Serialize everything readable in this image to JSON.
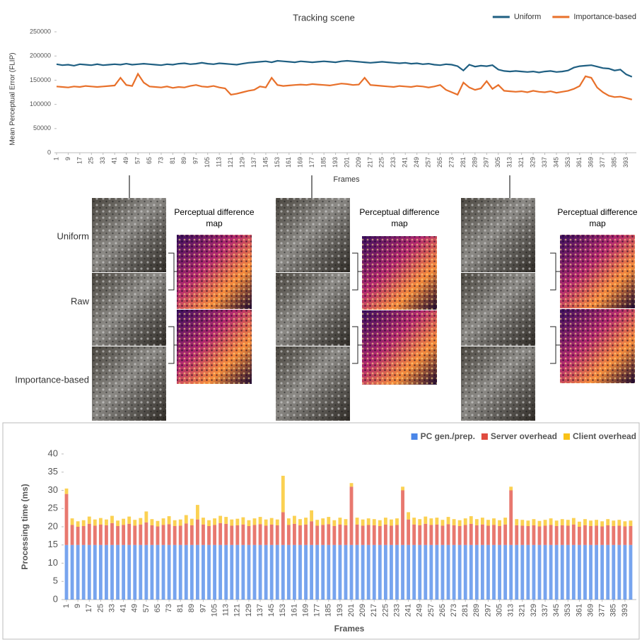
{
  "chart_data": [
    {
      "type": "line",
      "title": "Tracking scene",
      "x_label": "Frames",
      "y_label": "Mean Perceptual Error (FLIP)",
      "legend": "top-right",
      "x": [
        1,
        5,
        9,
        13,
        17,
        21,
        25,
        29,
        33,
        37,
        41,
        45,
        49,
        53,
        57,
        61,
        65,
        69,
        73,
        77,
        81,
        85,
        89,
        93,
        97,
        101,
        105,
        109,
        113,
        117,
        121,
        125,
        129,
        133,
        137,
        141,
        145,
        149,
        153,
        157,
        161,
        165,
        169,
        173,
        177,
        181,
        185,
        189,
        193,
        197,
        201,
        205,
        209,
        213,
        217,
        221,
        225,
        229,
        233,
        237,
        241,
        245,
        249,
        253,
        257,
        261,
        265,
        269,
        273,
        277,
        281,
        285,
        289,
        293,
        297,
        301,
        305,
        309,
        313,
        317,
        321,
        325,
        329,
        333,
        337,
        341,
        345,
        349,
        353,
        357,
        361,
        365,
        369,
        373,
        377,
        381,
        385,
        389,
        393,
        397
      ],
      "xlim": [
        1,
        400
      ],
      "xticks": [
        1,
        9,
        17,
        25,
        33,
        41,
        49,
        57,
        65,
        73,
        81,
        89,
        97,
        105,
        113,
        121,
        129,
        137,
        145,
        153,
        161,
        169,
        177,
        185,
        193,
        201,
        209,
        217,
        225,
        233,
        241,
        249,
        257,
        265,
        273,
        281,
        289,
        297,
        305,
        313,
        321,
        329,
        337,
        345,
        353,
        361,
        369,
        377,
        385,
        393
      ],
      "ylim": [
        0,
        250000
      ],
      "yticks": [
        0,
        50000,
        100000,
        150000,
        200000,
        250000
      ],
      "series": [
        {
          "name": "Uniform",
          "color": "#1f5f82",
          "values": [
            183000,
            181000,
            182000,
            180000,
            183000,
            182000,
            181000,
            183000,
            181000,
            182000,
            183000,
            182000,
            184000,
            182000,
            183000,
            184000,
            183000,
            182000,
            181000,
            183000,
            182000,
            184000,
            185000,
            183000,
            184000,
            186000,
            184000,
            183000,
            185000,
            184000,
            183000,
            182000,
            184000,
            186000,
            187000,
            188000,
            189000,
            187000,
            190000,
            189000,
            188000,
            187000,
            189000,
            188000,
            187000,
            188000,
            189000,
            188000,
            187000,
            189000,
            190000,
            189000,
            188000,
            187000,
            186000,
            187000,
            188000,
            187000,
            186000,
            185000,
            186000,
            184000,
            185000,
            183000,
            184000,
            182000,
            181000,
            183000,
            182000,
            179000,
            170000,
            182000,
            178000,
            180000,
            179000,
            181000,
            172000,
            169000,
            168000,
            169000,
            168000,
            167000,
            168000,
            166000,
            168000,
            169000,
            167000,
            168000,
            170000,
            176000,
            179000,
            180000,
            181000,
            178000,
            175000,
            174000,
            170000,
            172000,
            162000,
            157000
          ]
        },
        {
          "name": "Importance-based",
          "color": "#e8702a",
          "values": [
            137000,
            136000,
            135000,
            137000,
            136000,
            138000,
            137000,
            136000,
            137000,
            138000,
            139000,
            155000,
            140000,
            138000,
            163000,
            145000,
            137000,
            136000,
            135000,
            137000,
            134000,
            136000,
            135000,
            138000,
            140000,
            137000,
            136000,
            138000,
            135000,
            133000,
            120000,
            122000,
            125000,
            128000,
            130000,
            137000,
            135000,
            155000,
            140000,
            138000,
            139000,
            140000,
            141000,
            140000,
            142000,
            141000,
            140000,
            139000,
            141000,
            143000,
            142000,
            140000,
            141000,
            155000,
            140000,
            139000,
            138000,
            137000,
            136000,
            138000,
            137000,
            136000,
            138000,
            137000,
            135000,
            137000,
            140000,
            130000,
            125000,
            120000,
            145000,
            135000,
            130000,
            133000,
            148000,
            132000,
            140000,
            128000,
            127000,
            126000,
            127000,
            125000,
            128000,
            126000,
            125000,
            127000,
            124000,
            126000,
            128000,
            132000,
            138000,
            158000,
            155000,
            135000,
            125000,
            118000,
            115000,
            116000,
            113000,
            110000
          ]
        }
      ]
    },
    {
      "type": "stacked-bar",
      "x_label": "Frames",
      "y_label": "Processing time (ms)",
      "legend": "top-right",
      "x": [
        1,
        5,
        9,
        13,
        17,
        21,
        25,
        29,
        33,
        37,
        41,
        45,
        49,
        53,
        57,
        61,
        65,
        69,
        73,
        77,
        81,
        85,
        89,
        93,
        97,
        101,
        105,
        109,
        113,
        117,
        121,
        125,
        129,
        133,
        137,
        141,
        145,
        149,
        153,
        157,
        161,
        165,
        169,
        173,
        177,
        181,
        185,
        189,
        193,
        197,
        201,
        205,
        209,
        213,
        217,
        221,
        225,
        229,
        233,
        237,
        241,
        245,
        249,
        253,
        257,
        261,
        265,
        269,
        273,
        277,
        281,
        285,
        289,
        293,
        297,
        301,
        305,
        309,
        313,
        317,
        321,
        325,
        329,
        333,
        337,
        341,
        345,
        349,
        353,
        357,
        361,
        365,
        369,
        373,
        377,
        381,
        385,
        389,
        393,
        397
      ],
      "xlim": [
        -1,
        401
      ],
      "xticks": [
        1,
        9,
        17,
        25,
        33,
        41,
        49,
        57,
        65,
        73,
        81,
        89,
        97,
        105,
        113,
        121,
        129,
        137,
        145,
        153,
        161,
        169,
        177,
        185,
        193,
        201,
        209,
        217,
        225,
        233,
        241,
        249,
        257,
        265,
        273,
        281,
        289,
        297,
        305,
        313,
        321,
        329,
        337,
        345,
        353,
        361,
        369,
        377,
        385,
        393
      ],
      "ylim": [
        0,
        40
      ],
      "yticks": [
        0,
        5,
        10,
        15,
        20,
        25,
        30,
        35,
        40
      ],
      "series": [
        {
          "name": "PC gen./prep.",
          "color": "#4a86e8",
          "values": [
            15,
            15,
            15,
            15,
            15,
            15,
            15,
            15,
            15,
            15,
            15,
            15,
            15,
            15,
            15,
            15,
            15,
            15,
            15,
            15,
            15,
            15,
            15,
            15,
            15,
            15,
            15,
            15,
            15,
            15,
            15,
            15,
            15,
            15,
            15,
            15,
            15,
            15,
            15,
            15,
            15,
            15,
            15,
            15,
            15,
            15,
            15,
            15,
            15,
            15,
            15,
            15,
            15,
            15,
            15,
            15,
            15,
            15,
            15,
            15,
            15,
            15,
            15,
            15,
            15,
            15,
            15,
            15,
            15,
            15,
            15,
            15,
            15,
            15,
            15,
            15,
            15,
            15,
            15,
            15,
            15,
            15,
            15,
            15,
            15,
            15,
            15,
            15,
            15,
            15,
            15,
            15,
            15,
            15,
            15,
            15,
            15,
            15,
            15,
            15
          ]
        },
        {
          "name": "Server overhead",
          "color": "#e04b3f",
          "values": [
            14,
            5.5,
            5,
            5.2,
            5.8,
            5.3,
            5.6,
            5.4,
            6,
            5.2,
            5.5,
            5.8,
            5.3,
            5.6,
            6.2,
            5.4,
            5.1,
            5.5,
            5.7,
            5.2,
            5.3,
            5.9,
            5.4,
            7,
            5.6,
            5.2,
            5.5,
            6,
            5.8,
            5.3,
            5.4,
            5.6,
            5.2,
            5.5,
            5.7,
            5.3,
            5.6,
            5.4,
            9,
            5.5,
            5.8,
            5.4,
            5.6,
            6.5,
            5.3,
            5.5,
            5.7,
            5.2,
            5.6,
            5.4,
            16,
            5.6,
            5.3,
            5.5,
            5.4,
            5.2,
            5.6,
            5.3,
            5.5,
            15,
            7,
            5.6,
            5.4,
            5.8,
            5.5,
            5.6,
            5.3,
            5.7,
            5.4,
            5.2,
            5.5,
            5.8,
            5.4,
            5.6,
            5.3,
            5.5,
            5.2,
            5.6,
            15,
            5.4,
            5.3,
            5.2,
            5.4,
            5.1,
            5.3,
            5.5,
            5.2,
            5.4,
            5.3,
            5.6,
            5,
            5.4,
            5.2,
            5.3,
            5.1,
            5.4,
            5.2,
            5.3,
            5.1,
            5.2
          ]
        },
        {
          "name": "Client overhead",
          "color": "#f9c218",
          "values": [
            1.5,
            1.8,
            1.5,
            1.6,
            2,
            1.7,
            1.8,
            1.6,
            2,
            1.5,
            1.7,
            2,
            1.6,
            1.8,
            3,
            1.7,
            1.5,
            1.8,
            2.2,
            1.6,
            1.7,
            2.3,
            1.8,
            4,
            1.9,
            1.6,
            1.8,
            2,
            1.9,
            1.7,
            1.8,
            2,
            1.6,
            1.8,
            2,
            1.7,
            1.8,
            1.6,
            10,
            1.8,
            2.2,
            1.7,
            1.9,
            3,
            1.6,
            1.8,
            2,
            1.6,
            1.9,
            1.7,
            1,
            1.9,
            1.7,
            1.8,
            1.7,
            1.6,
            1.9,
            1.7,
            1.8,
            1,
            2,
            1.9,
            1.7,
            2,
            1.8,
            1.9,
            1.6,
            2,
            1.7,
            1.6,
            1.8,
            2.1,
            1.7,
            1.9,
            1.6,
            1.8,
            1.6,
            1.9,
            1,
            1.7,
            1.6,
            1.5,
            1.7,
            1.5,
            1.6,
            1.8,
            1.5,
            1.7,
            1.6,
            1.8,
            1.4,
            1.7,
            1.5,
            1.6,
            1.4,
            1.7,
            1.5,
            1.6,
            1.4,
            1.5
          ]
        }
      ]
    }
  ],
  "panel": {
    "row_labels": [
      "Uniform",
      "Raw",
      "Importance-based"
    ],
    "map_labels": [
      "Perceptual difference map",
      "Perceptual difference map",
      "Perceptual difference map"
    ]
  }
}
